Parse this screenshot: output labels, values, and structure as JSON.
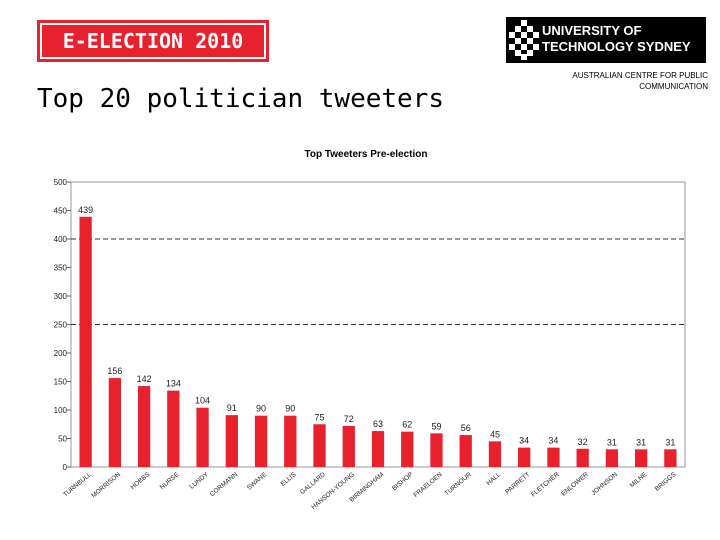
{
  "header": {
    "badge_text": "E-ELECTION 2010",
    "title": "Top 20 politician tweeters"
  },
  "logo": {
    "name": "university-of-technology-sydney-logo",
    "line1": "UNIVERSITY OF",
    "line2": "TECHNOLOGY SYDNEY"
  },
  "centre": {
    "line1": "AUSTRALIAN CENTRE FOR PUBLIC",
    "line2": "COMMUNICATION"
  },
  "colors": {
    "accent": "#e8212e",
    "bar": "#e8212e",
    "plot_bg": "#ffffff"
  },
  "chart_data": {
    "type": "bar",
    "title": "Top Tweeters Pre-election",
    "xlabel": "",
    "ylabel": "",
    "ylim": [
      0,
      500
    ],
    "yticks": [
      0,
      50,
      100,
      150,
      200,
      250,
      300,
      350,
      400,
      450,
      500
    ],
    "dashed_gridlines": [
      250,
      400
    ],
    "categories": [
      "TURNBULL",
      "MORRISON",
      "HOBBS",
      "NURSE",
      "LUNDY",
      "CORMANN",
      "SWANE",
      "ELLIS",
      "GALLARD",
      "HANSON-YOUNG",
      "BIRMINGHAM",
      "BISHOP",
      "FRAELOEN",
      "TURNOUR",
      "HALL",
      "PARRETT",
      "FLETCHER",
      "ENLOWER",
      "JOHNSON",
      "MILNE",
      "BRIGGS"
    ],
    "values": [
      439,
      156,
      142,
      134,
      104,
      91,
      90,
      90,
      75,
      72,
      63,
      62,
      59,
      56,
      45,
      34,
      34,
      32,
      31,
      31,
      31
    ],
    "value_labels": [
      "439",
      "156",
      "142",
      "134",
      "104",
      "91",
      "90",
      "90",
      "75",
      "72",
      "63",
      "62",
      "59",
      "56",
      "45",
      "34",
      "34",
      "32",
      "31",
      "31",
      "31"
    ]
  }
}
